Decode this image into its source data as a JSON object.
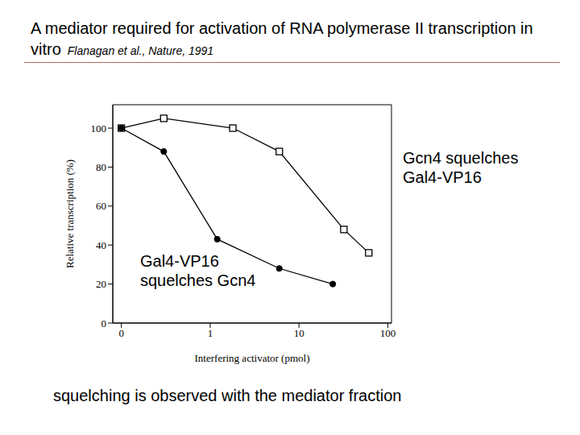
{
  "chart_data": {
    "type": "line",
    "title": "A mediator required for activation of RNA polymerase II transcription in vitro",
    "subtitle": "Flanagan et al., Nature, 1991",
    "x_label": "Interfering activator (pmol)",
    "y_label": "Relative transcription (%)",
    "log": "x",
    "xlim": [
      0.08,
      110
    ],
    "xticks": [
      {
        "value": 0.1,
        "label": "0"
      },
      1,
      10,
      100
    ],
    "ylim": [
      0,
      112
    ],
    "yticks": [
      0,
      20,
      40,
      60,
      80,
      100
    ],
    "grid": false,
    "series": [
      {
        "name": "Gcn4 squelches Gal4-VP16",
        "color": "#000000",
        "marker": "square",
        "line_style": "solid",
        "x": [
          0.1,
          0.3,
          1.8,
          6,
          32,
          61
        ],
        "values": [
          100,
          105,
          100,
          88,
          48,
          36
        ]
      },
      {
        "name": "Gal4-VP16 squelches Gcn4",
        "color": "#000000",
        "marker": "circle",
        "line_style": "solid",
        "x": [
          0.1,
          0.3,
          1.2,
          6,
          24
        ],
        "values": [
          100,
          88,
          43,
          28,
          20
        ]
      }
    ],
    "annotations": [
      "squelching is observed with the mediator fraction"
    ]
  }
}
